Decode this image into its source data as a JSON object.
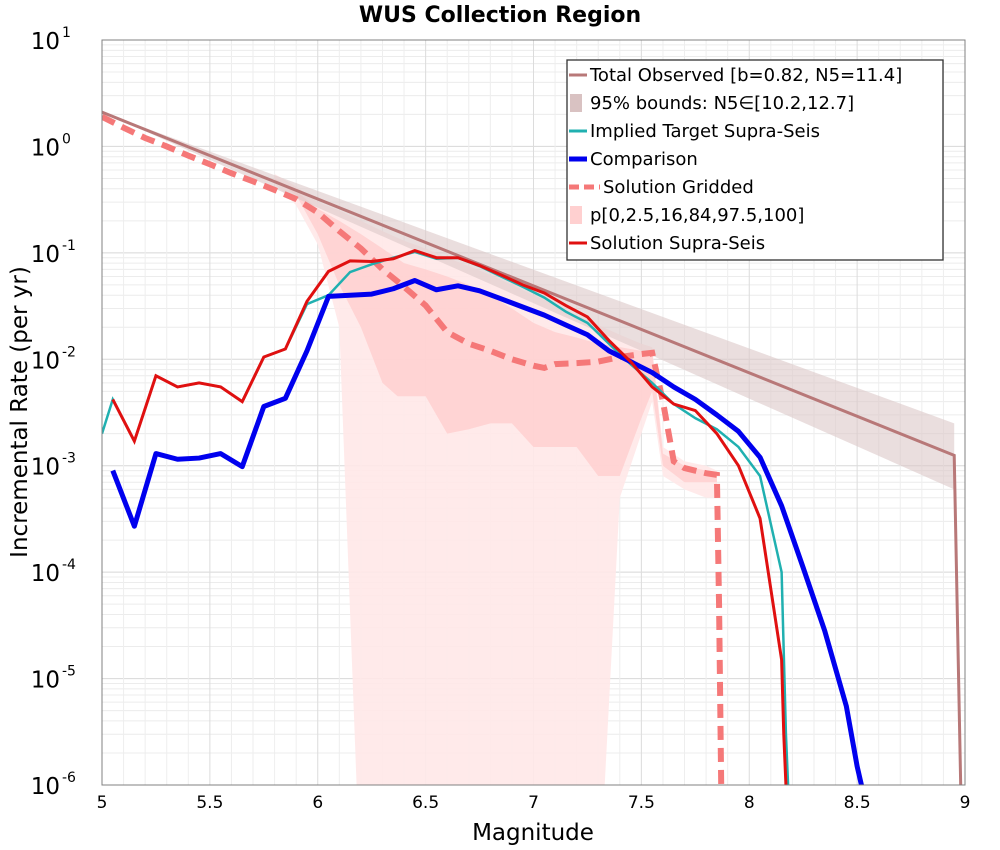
{
  "chart_data": {
    "type": "line",
    "title": "WUS Collection Region",
    "xlabel": "Magnitude",
    "ylabel": "Incremental Rate (per yr)",
    "xlim": [
      5,
      9
    ],
    "ylim_exponents": [
      -6,
      1
    ],
    "yscale": "log",
    "grid": true,
    "legend_placement": "top-right",
    "x_ticks": [
      "5",
      "5.5",
      "6",
      "6.5",
      "7",
      "7.5",
      "8",
      "8.5",
      "9"
    ],
    "y_ticks": [
      {
        "base": "10",
        "exp": "1"
      },
      {
        "base": "10",
        "exp": "0"
      },
      {
        "base": "10",
        "exp": "-1"
      },
      {
        "base": "10",
        "exp": "-2"
      },
      {
        "base": "10",
        "exp": "-3"
      },
      {
        "base": "10",
        "exp": "-4"
      },
      {
        "base": "10",
        "exp": "-5"
      },
      {
        "base": "10",
        "exp": "-6"
      }
    ],
    "legend": [
      {
        "label": "Total Observed [b=0.82, N5=11.4]",
        "color": "#b87878",
        "style": "line"
      },
      {
        "label": "95% bounds: N5∈[10.2,12.7]",
        "color": "#d9c2c2",
        "style": "band"
      },
      {
        "label": "Implied Target Supra-Seis",
        "color": "#20b0b0",
        "style": "line"
      },
      {
        "label": "Comparison",
        "color": "#0000ee",
        "style": "thick"
      },
      {
        "label": "Solution Gridded",
        "color": "#f57878",
        "style": "dashed"
      },
      {
        "label": "p[0,2.5,16,84,97.5,100]",
        "color": "#ffd0d0",
        "style": "band"
      },
      {
        "label": "Solution Supra-Seis",
        "color": "#e01010",
        "style": "line"
      }
    ],
    "colors": {
      "total_observed": "#b87878",
      "bounds_band": "#dcc8c8",
      "implied_target": "#20b0b0",
      "comparison": "#0000ee",
      "solution_gridded": "#f57878",
      "solution_supra": "#e01010",
      "pband_light": "#ffe8e8",
      "pband_mid": "#ffcccc"
    },
    "series": [
      {
        "key": "total_observed",
        "x": [
          5.0,
          8.95,
          8.98
        ],
        "y": [
          2.1,
          0.00125,
          1e-06
        ]
      },
      {
        "key": "bounds_upper",
        "x": [
          5.0,
          8.95
        ],
        "y": [
          2.1,
          0.0025
        ]
      },
      {
        "key": "bounds_lower",
        "x": [
          5.0,
          8.95
        ],
        "y": [
          2.1,
          0.0006
        ]
      },
      {
        "key": "pband_outer_upper",
        "x": [
          5.8,
          5.9,
          6.0,
          6.1,
          6.2,
          6.3,
          6.4,
          6.5,
          6.6,
          6.7,
          6.8,
          6.9,
          7.0,
          7.1,
          7.2,
          7.3,
          7.4,
          7.5,
          7.55,
          7.6,
          7.7,
          7.8,
          7.85
        ],
        "y": [
          0.55,
          0.42,
          0.3,
          0.25,
          0.2,
          0.16,
          0.13,
          0.11,
          0.09,
          0.075,
          0.062,
          0.05,
          0.04,
          0.033,
          0.026,
          0.021,
          0.017,
          0.014,
          0.013,
          0.0015,
          0.0011,
          0.001,
          0.0009
        ]
      },
      {
        "key": "pband_outer_lower",
        "x": [
          5.8,
          5.9,
          6.0,
          6.1,
          6.18,
          6.2,
          6.3,
          6.37,
          6.4,
          6.5,
          6.6,
          6.7,
          6.8,
          6.9,
          6.93,
          7.0,
          7.1,
          7.2,
          7.3,
          7.33,
          7.4,
          7.5,
          7.55,
          7.6,
          7.7,
          7.8,
          7.85
        ],
        "y": [
          0.45,
          0.28,
          0.12,
          0.02,
          1e-06,
          1e-06,
          1e-06,
          1e-06,
          1e-06,
          1e-06,
          1e-06,
          1e-06,
          1e-06,
          1e-06,
          1e-06,
          1e-06,
          1e-06,
          1e-06,
          1e-06,
          1e-06,
          0.0005,
          0.002,
          0.004,
          0.0008,
          0.0006,
          0.0005,
          0.0005
        ]
      },
      {
        "key": "pband_inner_upper",
        "x": [
          5.8,
          5.9,
          6.0,
          6.1,
          6.2,
          6.3,
          6.4,
          6.5,
          6.6,
          6.7,
          6.8,
          6.9,
          7.0,
          7.1,
          7.2,
          7.3,
          7.4,
          7.5,
          7.55,
          7.6,
          7.7,
          7.8,
          7.85
        ],
        "y": [
          0.5,
          0.38,
          0.26,
          0.2,
          0.15,
          0.11,
          0.08,
          0.07,
          0.06,
          0.05,
          0.04,
          0.03,
          0.022,
          0.018,
          0.016,
          0.014,
          0.013,
          0.012,
          0.012,
          0.0013,
          0.001,
          0.0009,
          0.0008
        ]
      },
      {
        "key": "pband_inner_lower",
        "x": [
          5.8,
          5.9,
          6.0,
          6.1,
          6.2,
          6.3,
          6.37,
          6.4,
          6.5,
          6.6,
          6.7,
          6.8,
          6.9,
          7.0,
          7.1,
          7.2,
          7.3,
          7.4,
          7.5,
          7.55,
          7.6,
          7.7,
          7.8,
          7.85
        ],
        "y": [
          0.48,
          0.35,
          0.15,
          0.05,
          0.02,
          0.006,
          0.0045,
          0.0045,
          0.0045,
          0.002,
          0.0022,
          0.0025,
          0.0025,
          0.0015,
          0.0015,
          0.0015,
          0.0008,
          0.0008,
          0.0028,
          0.005,
          0.001,
          0.0007,
          0.0007,
          0.0007
        ]
      },
      {
        "key": "implied_target",
        "x": [
          5.0,
          5.05,
          5.15,
          5.25,
          5.35,
          5.45,
          5.55,
          5.65,
          5.75,
          5.85,
          5.95,
          6.05,
          6.15,
          6.25,
          6.35,
          6.45,
          6.55,
          6.65,
          6.75,
          6.85,
          6.95,
          7.05,
          7.15,
          7.25,
          7.35,
          7.45,
          7.55,
          7.65,
          7.75,
          7.85,
          7.95,
          8.05,
          8.15,
          8.17,
          8.18
        ],
        "y": [
          0.002,
          0.0042,
          0.0017,
          0.007,
          0.0055,
          0.006,
          0.0055,
          0.004,
          0.0105,
          0.0125,
          0.033,
          0.04,
          0.066,
          0.078,
          0.09,
          0.102,
          0.088,
          0.09,
          0.075,
          0.06,
          0.048,
          0.038,
          0.028,
          0.022,
          0.014,
          0.009,
          0.006,
          0.0038,
          0.0028,
          0.0022,
          0.0015,
          0.0008,
          0.0001,
          3e-06,
          1e-06
        ]
      },
      {
        "key": "comparison",
        "x": [
          5.05,
          5.15,
          5.25,
          5.35,
          5.45,
          5.55,
          5.65,
          5.75,
          5.85,
          5.95,
          6.05,
          6.15,
          6.25,
          6.35,
          6.45,
          6.55,
          6.65,
          6.75,
          6.85,
          6.95,
          7.05,
          7.15,
          7.25,
          7.35,
          7.45,
          7.55,
          7.65,
          7.75,
          7.85,
          7.95,
          8.05,
          8.15,
          8.25,
          8.35,
          8.45,
          8.5,
          8.52
        ],
        "y": [
          0.0009,
          0.00027,
          0.0013,
          0.00115,
          0.00118,
          0.0013,
          0.00098,
          0.0036,
          0.0043,
          0.012,
          0.039,
          0.04,
          0.041,
          0.046,
          0.055,
          0.045,
          0.049,
          0.044,
          0.037,
          0.031,
          0.026,
          0.021,
          0.017,
          0.012,
          0.0095,
          0.0075,
          0.0055,
          0.0042,
          0.003,
          0.0021,
          0.0012,
          0.00042,
          0.00011,
          2.8e-05,
          5.5e-06,
          1.5e-06,
          1e-06
        ]
      },
      {
        "key": "solution_gridded",
        "x": [
          5.0,
          5.1,
          5.2,
          5.3,
          5.4,
          5.5,
          5.6,
          5.7,
          5.8,
          5.9,
          6.0,
          6.1,
          6.2,
          6.3,
          6.4,
          6.5,
          6.6,
          6.7,
          6.8,
          6.9,
          7.0,
          7.05,
          7.1,
          7.2,
          7.3,
          7.4,
          7.5,
          7.55,
          7.6,
          7.65,
          7.7,
          7.8,
          7.85,
          7.86,
          7.87
        ],
        "y": [
          1.9,
          1.5,
          1.2,
          1.0,
          0.82,
          0.68,
          0.56,
          0.47,
          0.39,
          0.32,
          0.24,
          0.16,
          0.11,
          0.07,
          0.048,
          0.032,
          0.018,
          0.014,
          0.012,
          0.01,
          0.0087,
          0.0083,
          0.009,
          0.0092,
          0.0095,
          0.0105,
          0.0112,
          0.0115,
          0.004,
          0.0011,
          0.00095,
          0.00085,
          0.00082,
          5e-05,
          1e-06
        ]
      },
      {
        "key": "solution_supra",
        "x": [
          5.05,
          5.15,
          5.25,
          5.35,
          5.45,
          5.55,
          5.65,
          5.75,
          5.85,
          5.95,
          6.05,
          6.15,
          6.25,
          6.35,
          6.45,
          6.55,
          6.65,
          6.75,
          6.85,
          6.95,
          7.05,
          7.15,
          7.25,
          7.35,
          7.45,
          7.55,
          7.65,
          7.75,
          7.85,
          7.95,
          8.05,
          8.15,
          8.16,
          8.17
        ],
        "y": [
          0.0042,
          0.0017,
          0.007,
          0.0055,
          0.006,
          0.0055,
          0.004,
          0.0105,
          0.0125,
          0.035,
          0.067,
          0.084,
          0.083,
          0.088,
          0.105,
          0.09,
          0.09,
          0.076,
          0.062,
          0.05,
          0.042,
          0.032,
          0.025,
          0.015,
          0.0095,
          0.0055,
          0.0038,
          0.0033,
          0.002,
          0.001,
          0.00032,
          1.5e-05,
          3e-06,
          1e-06
        ]
      }
    ]
  }
}
